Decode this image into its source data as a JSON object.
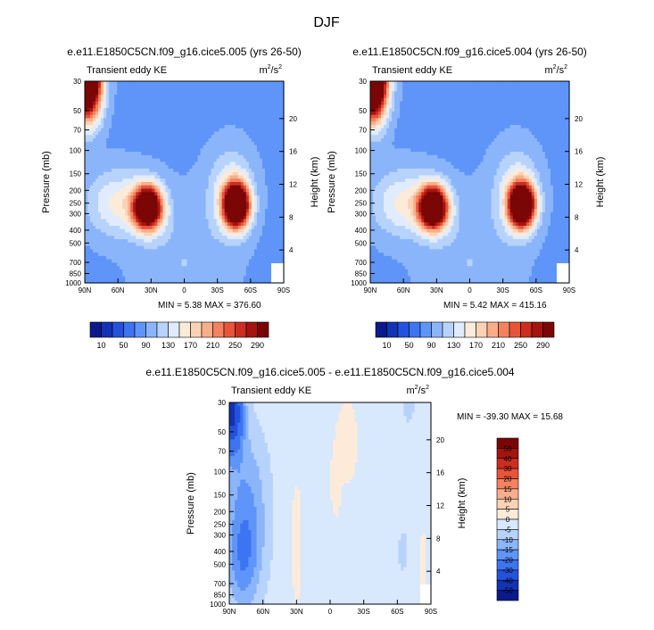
{
  "page": {
    "title": "DJF"
  },
  "palettes": {
    "kinetic": [
      "#0a1a8a",
      "#1332b4",
      "#2352dc",
      "#3c74f2",
      "#5f95f8",
      "#8bb5fb",
      "#b7d3fc",
      "#e0ecfd",
      "#fdebd9",
      "#fcd2b4",
      "#f9ae8a",
      "#f4825f",
      "#e8543a",
      "#cc2d20",
      "#a5140f",
      "#7a0606"
    ],
    "diff": [
      "#0a1a8a",
      "#1332b4",
      "#2352dc",
      "#3c74f2",
      "#5f95f8",
      "#8bb5fb",
      "#b7d3fc",
      "#d8e8fd",
      "#fdebd9",
      "#fcd2b4",
      "#f9ae8a",
      "#f4825f",
      "#e8543a",
      "#cc2d20",
      "#a5140f",
      "#7a0606"
    ]
  },
  "chart_data": [
    {
      "type": "heatmap",
      "id": "case1",
      "title": "e.e11.E1850C5CN.f09_g16.cice5.005 (yrs 26-50)",
      "left_label": "Transient eddy KE",
      "units_base": "m",
      "units_exp": "2",
      "units_tail": "/s",
      "units_tail_exp": "2",
      "ylabel": "Pressure (mb)",
      "ylabel_right": "Height (km)",
      "x_ticks": [
        "90N",
        "60N",
        "30N",
        "0",
        "30S",
        "60S",
        "90S"
      ],
      "x_values": [
        90,
        60,
        30,
        0,
        -30,
        -60,
        -90
      ],
      "y_ticks": [
        "30",
        "50",
        "70",
        "100",
        "150",
        "200",
        "250",
        "300",
        "400",
        "500",
        "700",
        "850",
        "1000"
      ],
      "y_values": [
        30,
        50,
        70,
        100,
        150,
        200,
        250,
        300,
        400,
        500,
        700,
        850,
        1000
      ],
      "height_ticks": [
        "20",
        "16",
        "12",
        "8",
        "4"
      ],
      "height_values": [
        20,
        16,
        12,
        8,
        4
      ],
      "min_label": "MIN =   5.38  MAX = 376.60",
      "min": 5.38,
      "max": 376.6,
      "palette": "kinetic",
      "colorbar_labels": [
        "10",
        "50",
        "90",
        "130",
        "170",
        "210",
        "250",
        "290"
      ],
      "levels": [
        10,
        30,
        50,
        70,
        90,
        110,
        130,
        150,
        170,
        190,
        210,
        230,
        250,
        270,
        290
      ],
      "features": [
        {
          "lat": 88,
          "p": 30,
          "amp": 380,
          "slat": 9,
          "slp": 0.45
        },
        {
          "lat": 33,
          "p": 270,
          "amp": 330,
          "slat": 9,
          "slp": 0.26
        },
        {
          "lat": 60,
          "p": 250,
          "amp": 70,
          "slat": 20,
          "slp": 0.4
        },
        {
          "lat": -47,
          "p": 260,
          "amp": 355,
          "slat": 8,
          "slp": 0.26
        },
        {
          "lat": -42,
          "p": 200,
          "amp": 60,
          "slat": 14,
          "slp": 0.5
        },
        {
          "lat": 0,
          "p": 700,
          "amp": 25,
          "slat": 30,
          "slp": 0.8
        }
      ],
      "base": 85
    },
    {
      "type": "heatmap",
      "id": "case2",
      "title": "e.e11.E1850C5CN.f09_g16.cice5.004 (yrs 26-50)",
      "left_label": "Transient eddy KE",
      "units_base": "m",
      "units_exp": "2",
      "units_tail": "/s",
      "units_tail_exp": "2",
      "ylabel": "Pressure (mb)",
      "ylabel_right": "Height (km)",
      "x_ticks": [
        "90N",
        "60N",
        "30N",
        "0",
        "30S",
        "60S",
        "90S"
      ],
      "x_values": [
        90,
        60,
        30,
        0,
        -30,
        -60,
        -90
      ],
      "y_ticks": [
        "30",
        "50",
        "70",
        "100",
        "150",
        "200",
        "250",
        "300",
        "400",
        "500",
        "700",
        "850",
        "1000"
      ],
      "y_values": [
        30,
        50,
        70,
        100,
        150,
        200,
        250,
        300,
        400,
        500,
        700,
        850,
        1000
      ],
      "height_ticks": [
        "20",
        "16",
        "12",
        "8",
        "4"
      ],
      "height_values": [
        20,
        16,
        12,
        8,
        4
      ],
      "min_label": "MIN =   5.42  MAX = 415.16",
      "min": 5.42,
      "max": 415.16,
      "palette": "kinetic",
      "colorbar_labels": [
        "10",
        "50",
        "90",
        "130",
        "170",
        "210",
        "250",
        "290"
      ],
      "levels": [
        10,
        30,
        50,
        70,
        90,
        110,
        130,
        150,
        170,
        190,
        210,
        230,
        250,
        270,
        290
      ],
      "features": [
        {
          "lat": 88,
          "p": 30,
          "amp": 415,
          "slat": 9,
          "slp": 0.45
        },
        {
          "lat": 33,
          "p": 270,
          "amp": 335,
          "slat": 9,
          "slp": 0.26
        },
        {
          "lat": 60,
          "p": 250,
          "amp": 70,
          "slat": 20,
          "slp": 0.4
        },
        {
          "lat": -47,
          "p": 260,
          "amp": 360,
          "slat": 8,
          "slp": 0.26
        },
        {
          "lat": -42,
          "p": 200,
          "amp": 60,
          "slat": 14,
          "slp": 0.5
        },
        {
          "lat": 0,
          "p": 700,
          "amp": 25,
          "slat": 30,
          "slp": 0.8
        }
      ],
      "base": 85
    },
    {
      "type": "heatmap",
      "id": "diff",
      "title": "e.e11.E1850C5CN.f09_g16.cice5.005 - e.e11.E1850C5CN.f09_g16.cice5.004",
      "left_label": "Transient eddy KE",
      "units_base": "m",
      "units_exp": "2",
      "units_tail": "/s",
      "units_tail_exp": "2",
      "ylabel": "Pressure (mb)",
      "ylabel_right": "Height (km)",
      "x_ticks": [
        "90N",
        "60N",
        "30N",
        "0",
        "30S",
        "60S",
        "90S"
      ],
      "x_values": [
        90,
        60,
        30,
        0,
        -30,
        -60,
        -90
      ],
      "y_ticks": [
        "30",
        "50",
        "70",
        "100",
        "150",
        "200",
        "250",
        "300",
        "400",
        "500",
        "700",
        "850",
        "1000"
      ],
      "y_values": [
        30,
        50,
        70,
        100,
        150,
        200,
        250,
        300,
        400,
        500,
        700,
        850,
        1000
      ],
      "height_ticks": [
        "20",
        "16",
        "12",
        "8",
        "4"
      ],
      "height_values": [
        20,
        16,
        12,
        8,
        4
      ],
      "min_label": "MIN = -39.30  MAX =  15.68",
      "min": -39.3,
      "max": 15.68,
      "palette": "diff",
      "colorbar_labels": [
        "50",
        "40",
        "30",
        "20",
        "15",
        "10",
        "5",
        "0",
        "-5",
        "-10",
        "-15",
        "-20",
        "-30",
        "-40",
        "-50"
      ],
      "levels": [
        -50,
        -40,
        -30,
        -20,
        -15,
        -10,
        -5,
        0,
        5,
        10,
        15,
        20,
        30,
        40,
        50
      ],
      "features": [
        {
          "lat": 88,
          "p": 35,
          "amp": -40,
          "slat": 7,
          "slp": 0.5
        },
        {
          "lat": 75,
          "p": 200,
          "amp": -14,
          "slat": 14,
          "slp": 1.0
        },
        {
          "lat": 78,
          "p": 500,
          "amp": -10,
          "slat": 10,
          "slp": 0.6
        },
        {
          "lat": -65,
          "p": 400,
          "amp": -7,
          "slat": 3,
          "slp": 0.25
        },
        {
          "lat": -70,
          "p": 30,
          "amp": -7,
          "slat": 4,
          "slp": 0.25
        },
        {
          "lat": -15,
          "p": 60,
          "amp": 7,
          "slat": 6,
          "slp": 0.45
        },
        {
          "lat": 30,
          "p": 350,
          "amp": 6,
          "slat": 3,
          "slp": 0.7
        },
        {
          "lat": -5,
          "p": 120,
          "amp": 6,
          "slat": 3,
          "slp": 0.4
        },
        {
          "lat": -83,
          "p": 600,
          "amp": 6,
          "slat": 2,
          "slp": 0.5
        }
      ],
      "base": -2
    }
  ]
}
